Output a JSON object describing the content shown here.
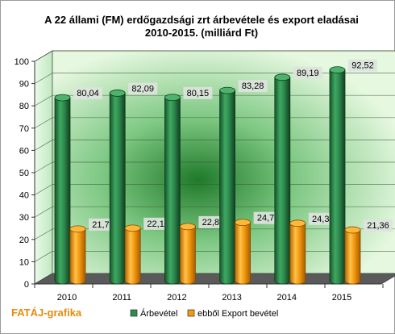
{
  "chart_data": {
    "type": "bar",
    "title": "A 22 állami (FM) erdőgazdsági zrt árbevétele és export eladásai",
    "subtitle": "2010-2015. (milliárd Ft)",
    "categories": [
      "2010",
      "2011",
      "2012",
      "2013",
      "2014",
      "2015"
    ],
    "series": [
      {
        "name": "Árbevétel",
        "values": [
          80.04,
          82.09,
          80.15,
          83.28,
          89.19,
          92.52
        ],
        "labels": [
          "80,04",
          "82,09",
          "80,15",
          "83,28",
          "89,19",
          "92,52"
        ],
        "color": "#2e8b4e"
      },
      {
        "name": "ebből Export bevétel",
        "values": [
          21.79,
          22.16,
          22.86,
          24.74,
          24.35,
          21.36
        ],
        "labels": [
          "21,79",
          "22,16",
          "22,86",
          "24,74",
          "24,35",
          "21,36"
        ],
        "color": "#f39a10"
      }
    ],
    "yticks": [
      "0",
      "10",
      "20",
      "30",
      "40",
      "50",
      "60",
      "70",
      "80",
      "90",
      "100"
    ],
    "ylim": [
      0,
      100
    ],
    "grid": true,
    "legend": "bottom-right",
    "style": "3d-cylinder"
  },
  "branding": "FATÁJ-grafika"
}
